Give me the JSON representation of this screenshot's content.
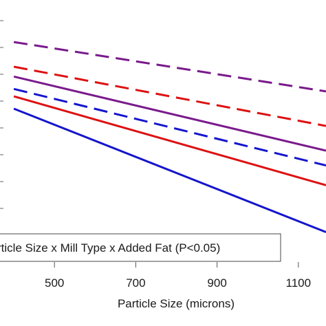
{
  "chart_data": {
    "type": "line",
    "xlabel": "Particle Size (microns)",
    "ylabel": "",
    "xlim": [
      366,
      1168
    ],
    "x_ticks": [
      500,
      700,
      900,
      1100
    ],
    "x_tick_labels": [
      "500",
      "700",
      "900",
      "1100"
    ],
    "y_tick_count": 9,
    "grid": false,
    "annotation": "rticle Size x Mill Type x Added Fat (P<0.05)",
    "series": [
      {
        "color": "#7a1a8c",
        "dash": "dashed",
        "x": [
          400,
          1168
        ],
        "y": [
          0.88,
          0.68
        ]
      },
      {
        "color": "#dd1111",
        "dash": "dashed",
        "x": [
          400,
          1168
        ],
        "y": [
          0.78,
          0.54
        ]
      },
      {
        "color": "#7a1a8c",
        "dash": "solid",
        "x": [
          400,
          1168
        ],
        "y": [
          0.74,
          0.44
        ]
      },
      {
        "color": "#1515cc",
        "dash": "dashed",
        "x": [
          400,
          1168
        ],
        "y": [
          0.69,
          0.38
        ]
      },
      {
        "color": "#dd1111",
        "dash": "solid",
        "x": [
          400,
          1168
        ],
        "y": [
          0.66,
          0.3
        ]
      },
      {
        "color": "#1515cc",
        "dash": "solid",
        "x": [
          400,
          1168
        ],
        "y": [
          0.61,
          0.11
        ]
      }
    ]
  }
}
